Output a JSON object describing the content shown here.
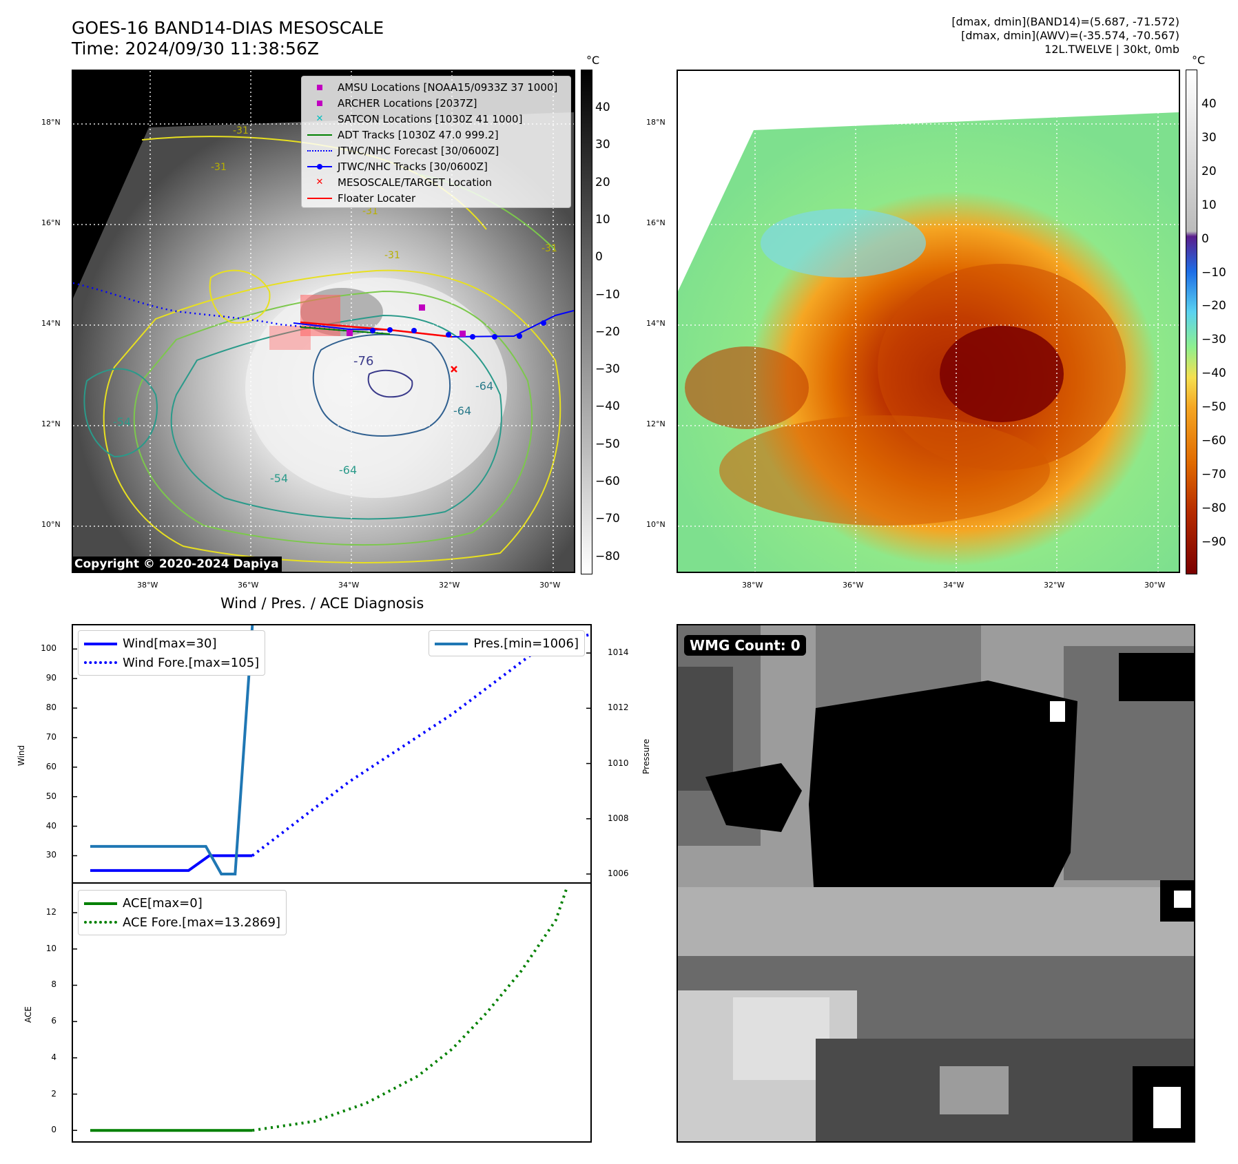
{
  "header": {
    "title_line1": "GOES-16 BAND14-DIAS MESOSCALE",
    "title_line2": "Time: 2024/09/30 11:38:56Z",
    "info_line1": "[dmax, dmin](BAND14)=(5.687, -71.572)",
    "info_line2": "[dmax, dmin](AWV)=(-35.574, -70.567)",
    "info_line3": "12L.TWELVE | 30kt, 0mb"
  },
  "map": {
    "lat_ticks": [
      "18°N",
      "16°N",
      "14°N",
      "12°N",
      "10°N"
    ],
    "lon_ticks": [
      "38°W",
      "36°W",
      "34°W",
      "32°W",
      "30°W"
    ],
    "contour_labels": [
      "-31",
      "-31",
      "-31",
      "-31",
      "-31",
      "-76",
      "-64",
      "-64",
      "-54",
      "-54",
      "-64"
    ],
    "copyright": "Copyright © 2020-2024 Dapiya",
    "legend": [
      {
        "label": "AMSU Locations [NOAA15/0933Z 37 1000]",
        "kind": "square",
        "color": "#c000c0"
      },
      {
        "label": "ARCHER Locations [2037Z]",
        "kind": "square",
        "color": "#c000c0"
      },
      {
        "label": "SATCON Locations [1030Z 41 1000]",
        "kind": "x",
        "color": "#00c0c0"
      },
      {
        "label": "ADT Tracks [1030Z 47.0 999.2]",
        "kind": "line",
        "color": "#008000"
      },
      {
        "label": "JTWC/NHC Forecast [30/0600Z]",
        "kind": "dotted",
        "color": "#0000ff"
      },
      {
        "label": "JTWC/NHC Tracks [30/0600Z]",
        "kind": "line-dot",
        "color": "#0000ff"
      },
      {
        "label": "MESOSCALE/TARGET Location",
        "kind": "x",
        "color": "#ff0000"
      },
      {
        "label": "Floater Locater",
        "kind": "line",
        "color": "#ff0000"
      }
    ]
  },
  "colorbar_left": {
    "unit": "°C",
    "labels": [
      "40",
      "30",
      "20",
      "10",
      "0",
      "−10",
      "−20",
      "−30",
      "−40",
      "−50",
      "−60",
      "−70",
      "−80"
    ]
  },
  "colorbar_right": {
    "unit": "°C",
    "labels": [
      "40",
      "30",
      "20",
      "10",
      "0",
      "−10",
      "−20",
      "−30",
      "−40",
      "−50",
      "−60",
      "−70",
      "−80",
      "−90"
    ]
  },
  "diagnosis": {
    "title": "Wind / Pres. / ACE Diagnosis",
    "wind_ylabel": "Wind",
    "pres_ylabel": "Pressure",
    "ace_ylabel": "ACE",
    "wind_legend": [
      "Wind[max=30]",
      "Wind Fore.[max=105]"
    ],
    "pres_legend": [
      "Pres.[min=1006]"
    ],
    "ace_legend": [
      "ACE[max=0]",
      "ACE Fore.[max=13.2869]"
    ],
    "wind_ticks": [
      "100",
      "90",
      "80",
      "70",
      "60",
      "50",
      "40",
      "30"
    ],
    "pres_ticks": [
      "1014",
      "1012",
      "1010",
      "1008",
      "1006"
    ],
    "ace_ticks": [
      "12",
      "10",
      "8",
      "6",
      "4",
      "2",
      "0"
    ]
  },
  "wmg": {
    "label": "WMG Count: 0"
  },
  "chart_data": [
    {
      "type": "line",
      "title": "Wind / Pres. / ACE Diagnosis",
      "ylabel": "Wind",
      "ylim": [
        21,
        108
      ],
      "xlim": [
        0,
        30
      ],
      "series": [
        {
          "name": "Wind[max=30]",
          "color": "#0000ff",
          "style": "solid",
          "x": [
            1,
            6.7,
            7.9,
            10.4
          ],
          "values": [
            25,
            25,
            30,
            30
          ]
        },
        {
          "name": "Wind Fore.[max=105]",
          "color": "#0000ff",
          "style": "dotted",
          "x": [
            10.4,
            16,
            22,
            27,
            30
          ],
          "values": [
            30,
            55,
            78,
            100,
            105
          ]
        }
      ]
    },
    {
      "type": "line",
      "ylabel": "Pressure",
      "ylim": [
        1005.7,
        1015.0
      ],
      "xlim": [
        0,
        30
      ],
      "series": [
        {
          "name": "Pres.[min=1006]",
          "color": "#1f77b4",
          "style": "solid",
          "x": [
            1,
            7.7,
            8.6,
            9.4,
            10.4
          ],
          "values": [
            1007,
            1007,
            1006,
            1006,
            1015
          ]
        }
      ]
    },
    {
      "type": "line",
      "ylabel": "ACE",
      "ylim": [
        -0.6,
        13.6
      ],
      "xlim": [
        0,
        30
      ],
      "series": [
        {
          "name": "ACE[max=0]",
          "color": "#008000",
          "style": "solid",
          "x": [
            1,
            10.4
          ],
          "values": [
            0,
            0
          ]
        },
        {
          "name": "ACE Fore.[max=13.2869]",
          "color": "#008000",
          "style": "dotted",
          "x": [
            10.4,
            14,
            17,
            20,
            22,
            24,
            26,
            28,
            28.6
          ],
          "values": [
            0,
            0.5,
            1.5,
            3,
            4.5,
            6.5,
            8.8,
            11.6,
            13.2869
          ]
        }
      ]
    }
  ]
}
